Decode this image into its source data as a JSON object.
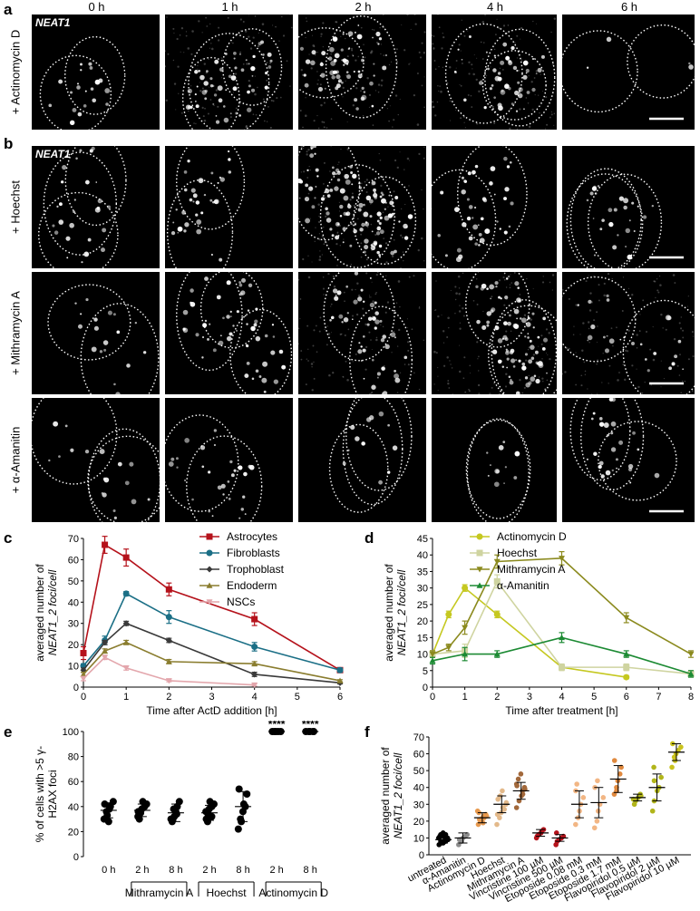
{
  "panels": {
    "a": "a",
    "b": "b",
    "c": "c",
    "d": "d",
    "e": "e",
    "f": "f"
  },
  "time_labels": [
    "0 h",
    "1 h",
    "2 h",
    "4 h",
    "6 h"
  ],
  "gene_label": "NEAT1",
  "row_labels": {
    "a": "+ Actinomycin D",
    "b1": "+ Hoechst",
    "b2": "+ Mithramycin A",
    "b3": "+ α-Amanitin"
  },
  "chart_data": [
    {
      "panel": "c",
      "type": "line",
      "xlabel": "Time after ActD addition [h]",
      "ylabel_line1": "averaged number of",
      "ylabel_line2": "NEAT1_2 foci/cell",
      "xlim": [
        0,
        6
      ],
      "ylim": [
        0,
        70
      ],
      "xticks": [
        "0",
        "1",
        "2",
        "3",
        "4",
        "5",
        "6"
      ],
      "yticks": [
        "0",
        "10",
        "20",
        "30",
        "40",
        "50",
        "60",
        "70"
      ],
      "x": [
        0,
        0.5,
        1,
        2,
        4,
        6
      ],
      "series": [
        {
          "name": "Astrocytes",
          "color": "#b5121b",
          "marker": "square",
          "values": [
            16,
            67,
            61,
            46,
            32,
            8
          ],
          "err": [
            3,
            4,
            4,
            3,
            3,
            1
          ]
        },
        {
          "name": "Fibroblasts",
          "color": "#1b6f86",
          "marker": "circle",
          "values": [
            10,
            22,
            44,
            33,
            19,
            8
          ],
          "err": [
            1,
            2,
            1,
            3,
            2,
            1
          ]
        },
        {
          "name": "Trophoblast",
          "color": "#3a3a3a",
          "marker": "diamond",
          "values": [
            8,
            21,
            30,
            22,
            6,
            2
          ],
          "err": [
            1,
            1,
            1,
            1,
            1,
            0.5
          ]
        },
        {
          "name": "Endoderm",
          "color": "#8a7d2f",
          "marker": "triangle",
          "values": [
            6,
            17,
            21,
            12,
            11,
            3
          ],
          "err": [
            1,
            1,
            1,
            1,
            1,
            0.5
          ]
        },
        {
          "name": "NSCs",
          "color": "#e3a6ac",
          "marker": "triangle-down",
          "values": [
            4,
            14,
            9,
            3,
            1,
            null
          ],
          "err": [
            1,
            1,
            1,
            0.5,
            0.5,
            0
          ]
        }
      ]
    },
    {
      "panel": "d",
      "type": "line",
      "xlabel": "Time after treatment [h]",
      "ylabel_line1": "averaged number of",
      "ylabel_line2": "NEAT1_2 foci/cell",
      "xlim": [
        0,
        8
      ],
      "ylim": [
        0,
        45
      ],
      "xticks": [
        "0",
        "1",
        "2",
        "3",
        "4",
        "5",
        "6",
        "7",
        "8"
      ],
      "yticks": [
        "0",
        "5",
        "10",
        "15",
        "20",
        "25",
        "30",
        "35",
        "40",
        "45"
      ],
      "series": [
        {
          "name": "Actinomycin D",
          "color": "#c5c820",
          "marker": "circle",
          "x": [
            0,
            0.5,
            1,
            2,
            4,
            6
          ],
          "values": [
            10,
            22,
            30,
            22,
            6,
            3
          ],
          "err": [
            1,
            1,
            1,
            1,
            0.5,
            0.5
          ]
        },
        {
          "name": "Hoechst",
          "color": "#cfd4a0",
          "marker": "square",
          "x": [
            0,
            1,
            2,
            4,
            6,
            8
          ],
          "values": [
            10,
            11,
            32,
            6,
            6,
            4
          ],
          "err": [
            1,
            2,
            2,
            1,
            1,
            1
          ]
        },
        {
          "name": "Mithramycin A",
          "color": "#8b8a1e",
          "marker": "triangle-down",
          "x": [
            0,
            0.5,
            1,
            2,
            4,
            6,
            8
          ],
          "values": [
            10,
            12,
            18,
            38,
            39,
            21,
            10
          ],
          "err": [
            1,
            1,
            2,
            2,
            2,
            1.5,
            1
          ]
        },
        {
          "name": "α-Amanitin",
          "color": "#1c8a33",
          "marker": "triangle",
          "x": [
            0,
            1,
            2,
            4,
            6,
            8
          ],
          "values": [
            8,
            10,
            10,
            15,
            10,
            4
          ],
          "err": [
            1,
            2,
            1,
            1.5,
            1,
            1
          ]
        }
      ]
    },
    {
      "panel": "e",
      "type": "scatter",
      "ylabel_line1": "% of cells with >5 γ-",
      "ylabel_line2": "H2AX foci",
      "ylim": [
        0,
        100
      ],
      "yticks": [
        "0",
        "20",
        "40",
        "60",
        "80",
        "100"
      ],
      "categories": [
        "0 h",
        "2 h",
        "8 h",
        "2 h",
        "8 h",
        "2 h",
        "8 h"
      ],
      "groups": [
        {
          "label": "Mithramycin A",
          "from": 1,
          "to": 2
        },
        {
          "label": "Hoechst",
          "from": 3,
          "to": 4
        },
        {
          "label": "Actinomycin D",
          "from": 5,
          "to": 6
        }
      ],
      "significance": {
        "label": "****",
        "categories": [
          5,
          6
        ]
      },
      "points": [
        [
          30,
          33,
          38,
          40,
          44,
          42,
          36,
          28
        ],
        [
          32,
          35,
          38,
          40,
          42,
          36,
          30,
          44
        ],
        [
          28,
          32,
          36,
          40,
          44,
          30,
          38,
          34
        ],
        [
          30,
          34,
          38,
          40,
          42,
          36,
          28,
          44,
          32
        ],
        [
          22,
          30,
          36,
          40,
          50,
          54,
          28,
          42
        ],
        [
          100,
          100,
          100,
          100,
          100
        ],
        [
          100,
          100,
          100,
          100,
          100
        ]
      ],
      "means": [
        37,
        37,
        35,
        35,
        40,
        100,
        100
      ],
      "sd": [
        6,
        5,
        7,
        6,
        12,
        0,
        0
      ]
    },
    {
      "panel": "f",
      "type": "scatter",
      "ylabel_line1": "averaged number of",
      "ylabel_line2": "NEAT1_2 foci/cell",
      "ylim": [
        0,
        70
      ],
      "yticks": [
        "0",
        "10",
        "20",
        "30",
        "40",
        "50",
        "60",
        "70"
      ],
      "categories": [
        "untreated",
        "α-Amanitin",
        "Actinomycin D",
        "Hoechst",
        "Mithramycin A",
        "Vincristine 100 µM",
        "Vincristine 500 µM",
        "Etoposide 0.08 mM",
        "Etoposide 0.3 mM",
        "Etoposide 1.7 mM",
        "Flavopiridol 0.5 µM",
        "Flavopiridol 2 µM",
        "Flavopiridol 10 µM"
      ],
      "colors": [
        "#000000",
        "#8c8c8c",
        "#e89a4f",
        "#e3b98a",
        "#a2683a",
        "#b5121b",
        "#b5121b",
        "#f2b684",
        "#f2b684",
        "#e0893e",
        "#b1b51a",
        "#b1b51a",
        "#c9c21c"
      ],
      "points": [
        [
          6,
          7,
          8,
          9,
          10,
          11,
          12,
          13,
          8,
          9,
          10,
          11,
          7,
          12,
          9,
          10,
          8,
          11
        ],
        [
          6,
          8,
          10,
          11,
          12,
          9
        ],
        [
          18,
          20,
          22,
          23,
          24,
          25,
          21,
          19,
          22,
          23,
          26
        ],
        [
          18,
          22,
          25,
          28,
          30,
          33,
          35,
          38,
          27,
          31,
          24
        ],
        [
          28,
          32,
          35,
          38,
          40,
          42,
          45,
          48,
          36,
          39,
          41
        ],
        [
          10,
          12,
          13,
          14,
          15,
          11
        ],
        [
          6,
          8,
          9,
          10,
          11,
          13
        ],
        [
          18,
          22,
          26,
          30,
          34,
          38,
          42
        ],
        [
          16,
          20,
          26,
          30,
          34,
          40,
          44
        ],
        [
          36,
          40,
          44,
          48,
          52,
          56,
          38
        ],
        [
          30,
          32,
          34,
          36,
          35,
          33
        ],
        [
          26,
          32,
          38,
          40,
          46,
          52,
          44
        ],
        [
          52,
          56,
          60,
          62,
          64,
          66,
          58
        ]
      ],
      "means": [
        9,
        10,
        22,
        30,
        38,
        13,
        10,
        30,
        31,
        45,
        34,
        40,
        61
      ],
      "sd": [
        2,
        3,
        3,
        5,
        5,
        2,
        2,
        8,
        9,
        8,
        2,
        8,
        5
      ]
    }
  ]
}
